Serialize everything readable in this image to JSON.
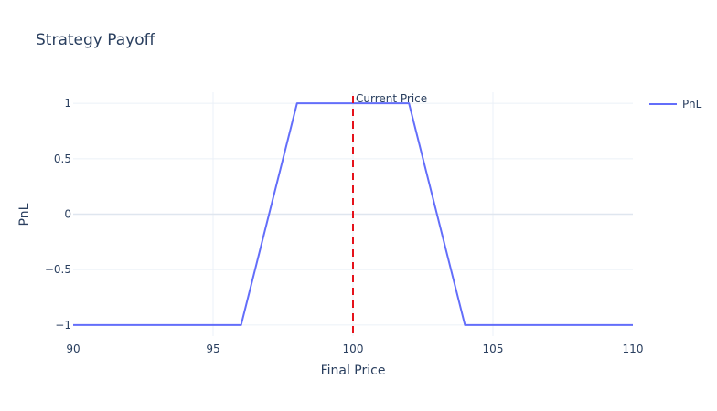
{
  "chart_data": {
    "type": "line",
    "title": "Strategy Payoff",
    "xlabel": "Final Price",
    "ylabel": "PnL",
    "xlim": [
      90,
      110
    ],
    "ylim": [
      -1.1,
      1.1
    ],
    "x_ticks": [
      90,
      95,
      100,
      105,
      110
    ],
    "x_tick_labels": [
      "90",
      "95",
      "100",
      "105",
      "110"
    ],
    "y_ticks": [
      1,
      0.5,
      0,
      -0.5,
      -1
    ],
    "y_tick_labels": [
      "1",
      "0.5",
      "0",
      "−0.5",
      "−1"
    ],
    "grid": true,
    "legend_position": "top-right",
    "series": [
      {
        "name": "PnL",
        "color": "#636efa",
        "x": [
          90,
          96,
          98,
          102,
          104,
          110
        ],
        "y": [
          -1,
          -1,
          1,
          1,
          -1,
          -1
        ]
      }
    ],
    "annotations": [
      {
        "type": "vline",
        "x": 100,
        "color": "#e5121b",
        "style": "dashed",
        "label": "Current Price"
      }
    ]
  }
}
